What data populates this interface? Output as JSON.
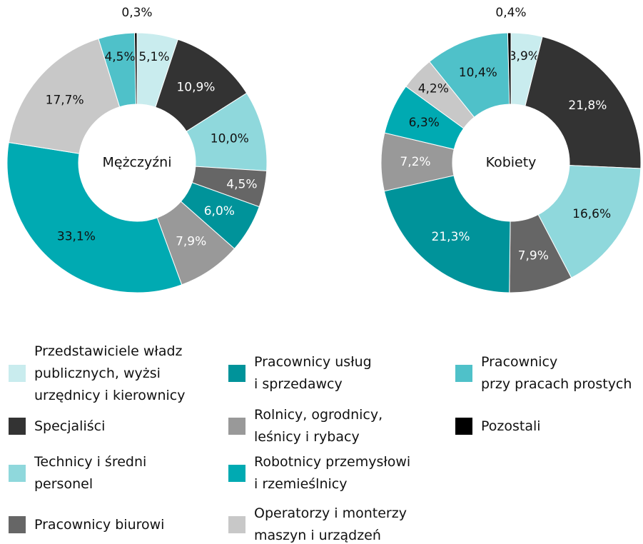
{
  "legend": {
    "categories": [
      "Przedstawiciele władz\npublicznych, wyżsi\nurzędnicy i kierownicy",
      "Specjaliści",
      "Technicy i średni\npersonel",
      "Pracownicy biurowi",
      "Pracownicy usług\ni sprzedawcy",
      "Rolnicy, ogrodnicy,\nleśnicy i rybacy",
      "Robotnicy przemysłowi\ni rzemieślnicy",
      "Operatorzy i monterzy\nmaszyn i urządzeń",
      "Pracownicy\nprzy pracach prostych",
      "Pozostali"
    ],
    "colors": [
      "#c9ecee",
      "#333333",
      "#8fd8dc",
      "#666666",
      "#00939a",
      "#999999",
      "#00aab2",
      "#c8c8c8",
      "#4fc1c9",
      "#000000"
    ]
  },
  "chart_data": [
    {
      "type": "pie",
      "title": "Mężczyźni",
      "values": [
        5.1,
        10.9,
        10.0,
        4.5,
        6.0,
        7.9,
        33.1,
        17.7,
        4.5,
        0.3
      ],
      "value_labels": [
        "5,1%",
        "10,9%",
        "10,0%",
        "4,5%",
        "6,0%",
        "7,9%",
        "33,1%",
        "17,7%",
        "4,5%",
        "0,3%"
      ]
    },
    {
      "type": "pie",
      "title": "Kobiety",
      "values": [
        3.9,
        21.8,
        16.6,
        7.9,
        21.3,
        7.2,
        6.3,
        4.2,
        10.4,
        0.4
      ],
      "value_labels": [
        "3,9%",
        "21,8%",
        "16,6%",
        "7,9%",
        "21,3%",
        "7,2%",
        "6,3%",
        "4,2%",
        "10,4%",
        "0,4%"
      ]
    }
  ]
}
